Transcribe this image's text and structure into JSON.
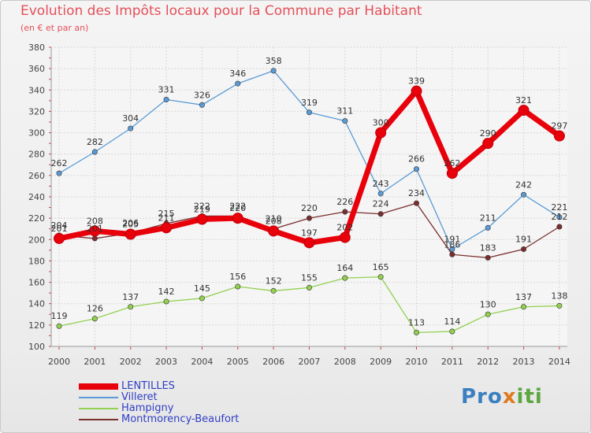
{
  "title": "Evolution des Impôts locaux pour la Commune par Habitant",
  "subtitle": "(en € et par an)",
  "brand": {
    "part1": "Pro",
    "part2": "x",
    "part3": "iti"
  },
  "chart_data": {
    "type": "line",
    "title": "Evolution des Impôts locaux pour la Commune par Habitant",
    "subtitle": "(en € et par an)",
    "xlabel": "",
    "ylabel": "",
    "x": [
      "2000",
      "2001",
      "2002",
      "2003",
      "2004",
      "2005",
      "2006",
      "2007",
      "2008",
      "2009",
      "2010",
      "2011",
      "2012",
      "2013",
      "2014"
    ],
    "ylim": [
      100,
      380
    ],
    "yticks": [
      100,
      120,
      140,
      160,
      180,
      200,
      220,
      240,
      260,
      280,
      300,
      320,
      340,
      360,
      380
    ],
    "grid": true,
    "legend_position": "bottom-left",
    "series": [
      {
        "name": "LENTILLES",
        "color": "#e8000b",
        "values": [
          201,
          208,
          205,
          211,
          219,
          220,
          208,
          197,
          202,
          300,
          339,
          262,
          290,
          321,
          297
        ]
      },
      {
        "name": "Villeret",
        "color": "#5b9bd5",
        "values": [
          262,
          282,
          304,
          331,
          326,
          346,
          358,
          319,
          311,
          243,
          266,
          191,
          211,
          242,
          221
        ]
      },
      {
        "name": "Hampigny",
        "color": "#92d050",
        "values": [
          119,
          126,
          137,
          142,
          145,
          156,
          152,
          155,
          164,
          165,
          113,
          114,
          130,
          137,
          138
        ]
      },
      {
        "name": "Montmorency-Beaufort",
        "color": "#7a2e2e",
        "values": [
          204,
          201,
          206,
          215,
          222,
          222,
          210,
          220,
          226,
          224,
          234,
          186,
          183,
          191,
          212
        ]
      }
    ]
  }
}
